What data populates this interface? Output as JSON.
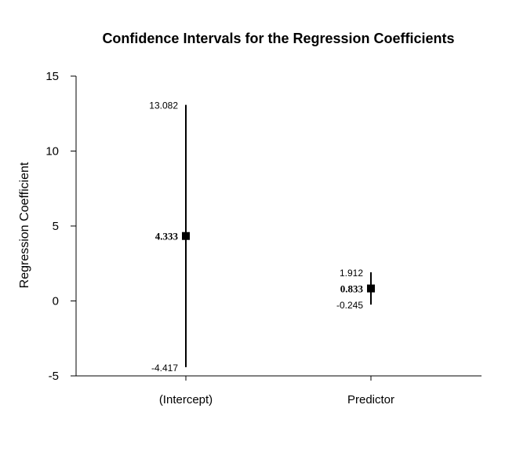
{
  "chart_data": {
    "type": "errorbar",
    "title": "Confidence Intervals for the Regression Coefficients",
    "xlabel": "",
    "ylabel": "Regression Coefficient",
    "ylim": [
      -5,
      15
    ],
    "yticks": [
      "-5",
      "0",
      "5",
      "10",
      "15"
    ],
    "categories": [
      "(Intercept)",
      "Predictor"
    ],
    "points": [
      {
        "category": "(Intercept)",
        "estimate": 4.333,
        "lower": -4.417,
        "upper": 13.082,
        "estimate_label": "4.333",
        "lower_label": "-4.417",
        "upper_label": "13.082"
      },
      {
        "category": "Predictor",
        "estimate": 0.833,
        "lower": -0.245,
        "upper": 1.912,
        "estimate_label": "0.833",
        "lower_label": "-0.245",
        "upper_label": "1.912"
      }
    ],
    "grid": false,
    "legend": "none",
    "colors": {
      "marker": "#000000",
      "axis": "#000000"
    }
  }
}
